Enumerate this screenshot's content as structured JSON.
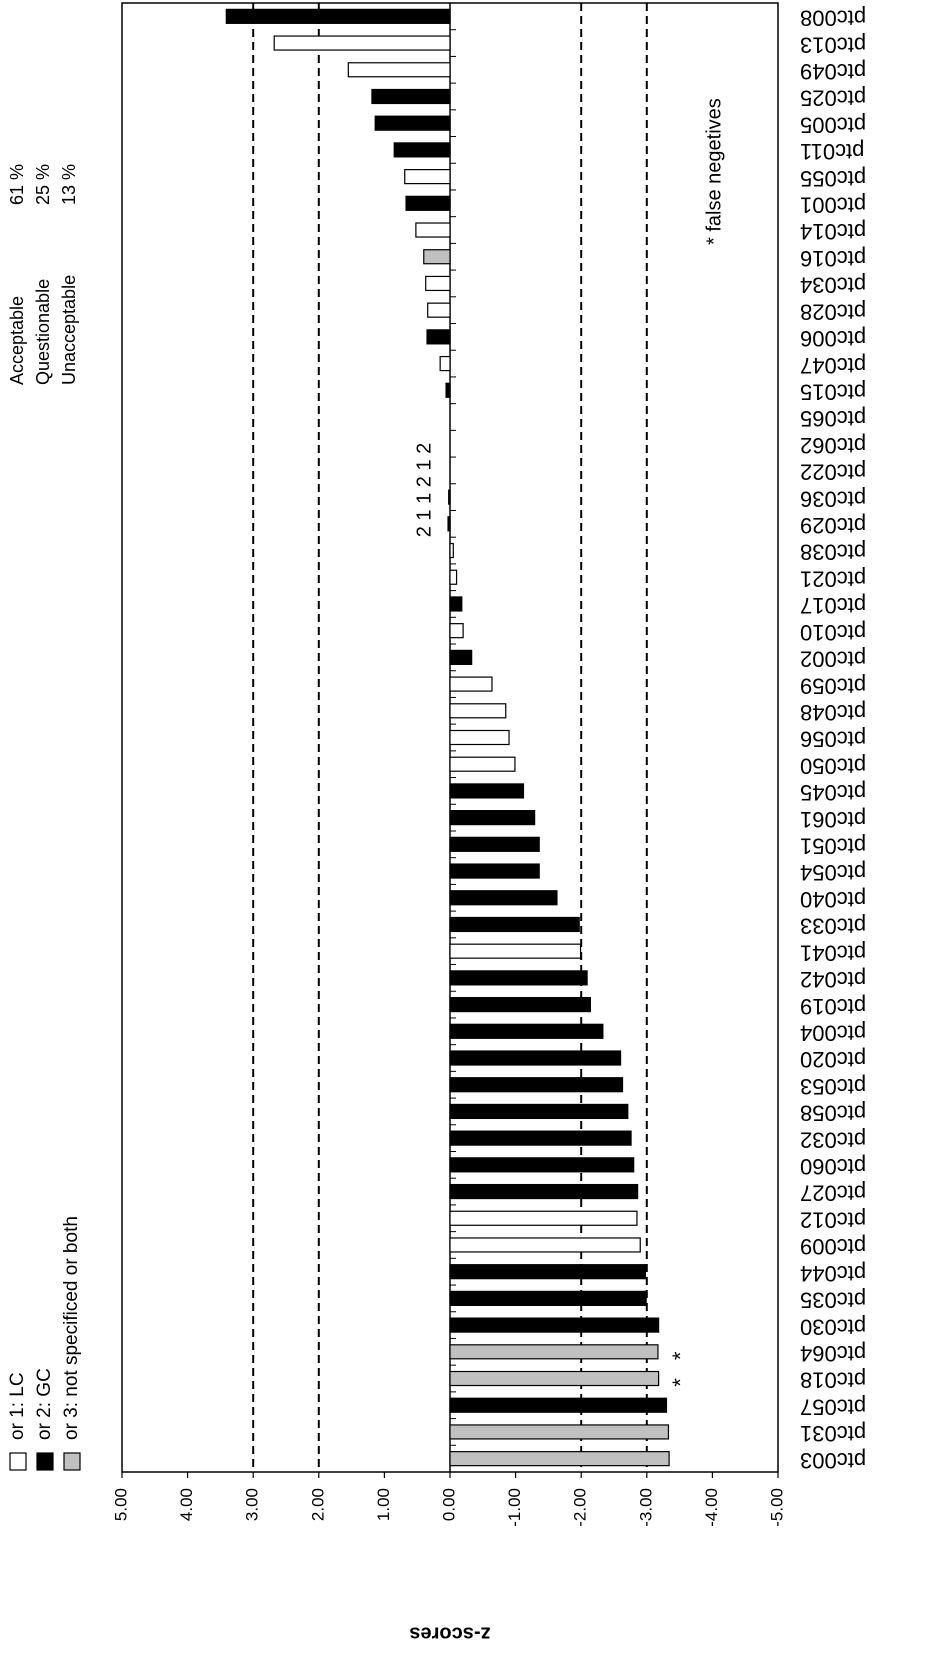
{
  "chart_data": {
    "type": "bar",
    "y_label": "z-scores",
    "categories": [
      "ptc008",
      "ptc013",
      "ptc049",
      "ptc025",
      "ptc005",
      "ptc011",
      "ptc055",
      "ptc001",
      "ptc014",
      "ptc016",
      "ptc034",
      "ptc028",
      "ptc006",
      "ptc047",
      "ptc015",
      "ptc065",
      "ptc062",
      "ptc022",
      "ptc036",
      "ptc029",
      "ptc038",
      "ptc021",
      "ptc017",
      "ptc010",
      "ptc002",
      "ptc059",
      "ptc048",
      "ptc056",
      "ptc050",
      "ptc045",
      "ptc061",
      "ptc051",
      "ptc054",
      "ptc040",
      "ptc033",
      "ptc041",
      "ptc042",
      "ptc019",
      "ptc004",
      "ptc020",
      "ptc053",
      "ptc058",
      "ptc032",
      "ptc060",
      "ptc027",
      "ptc012",
      "ptc009",
      "ptc044",
      "ptc035",
      "ptc030",
      "ptc064",
      "ptc018",
      "ptc057",
      "ptc031",
      "ptc003"
    ],
    "values": [
      3.41,
      2.68,
      1.55,
      1.19,
      1.14,
      0.85,
      0.69,
      0.67,
      0.52,
      0.4,
      0.37,
      0.34,
      0.35,
      0.15,
      0.06,
      0,
      0,
      0,
      0.02,
      0.03,
      -0.05,
      -0.1,
      -0.18,
      -0.2,
      -0.33,
      -0.64,
      -0.85,
      -0.9,
      -0.99,
      -1.12,
      -1.29,
      -1.36,
      -1.36,
      -1.63,
      -1.97,
      -1.99,
      -2.09,
      -2.14,
      -2.33,
      -2.6,
      -2.63,
      -2.71,
      -2.76,
      -2.8,
      -2.86,
      -2.85,
      -2.9,
      -2.98,
      -2.99,
      -3.18,
      -3.17,
      -3.18,
      -3.3,
      -3.33,
      -3.34
    ],
    "groups": [
      1,
      0,
      0,
      1,
      1,
      1,
      0,
      1,
      0,
      2,
      0,
      0,
      1,
      0,
      1,
      1,
      1,
      1,
      1,
      1,
      0,
      0,
      1,
      0,
      1,
      0,
      0,
      0,
      0,
      1,
      1,
      1,
      1,
      1,
      1,
      0,
      1,
      1,
      1,
      1,
      1,
      1,
      1,
      1,
      1,
      0,
      0,
      1,
      1,
      1,
      2,
      2,
      1,
      2,
      2
    ],
    "value_annotations": [
      null,
      null,
      null,
      null,
      null,
      null,
      null,
      null,
      null,
      null,
      null,
      null,
      null,
      null,
      null,
      null,
      null,
      null,
      null,
      null,
      null,
      null,
      null,
      null,
      null,
      null,
      null,
      null,
      null,
      null,
      null,
      null,
      null,
      null,
      null,
      null,
      null,
      null,
      null,
      null,
      null,
      null,
      null,
      null,
      null,
      null,
      null,
      null,
      null,
      null,
      "*",
      "*",
      null,
      null,
      null
    ],
    "legend": [
      {
        "name": "or 1: LC",
        "color": "#ffffff"
      },
      {
        "name": "or 2: GC",
        "color": "#000000"
      },
      {
        "name": "or 3: not specificed or both",
        "color": "#c0c0c0"
      }
    ],
    "ylim": [
      5,
      -5
    ],
    "yticks": [
      {
        "value": 5,
        "label": "5.00"
      },
      {
        "value": 4,
        "label": "4.00"
      },
      {
        "value": 3,
        "label": "3.00"
      },
      {
        "value": 2,
        "label": "2.00"
      },
      {
        "value": 1,
        "label": "1.00"
      },
      {
        "value": 0,
        "label": "0.00"
      },
      {
        "value": -1,
        "label": "-1.00"
      },
      {
        "value": -2,
        "label": "-2.00"
      },
      {
        "value": -3,
        "label": "-3.00"
      },
      {
        "value": -4,
        "label": "-4.00"
      },
      {
        "value": -5,
        "label": "-5.00"
      }
    ],
    "reference_lines": [
      3,
      2,
      -2,
      -3
    ],
    "group_annotation": "2 1 1 2 1 2",
    "note": "* false negetives",
    "stats": [
      {
        "label": "Acceptable",
        "value_label": "61 %"
      },
      {
        "label": "Questionable",
        "value_label": "25 %"
      },
      {
        "label": "Unacceptable",
        "value_label": "13 %"
      }
    ]
  }
}
